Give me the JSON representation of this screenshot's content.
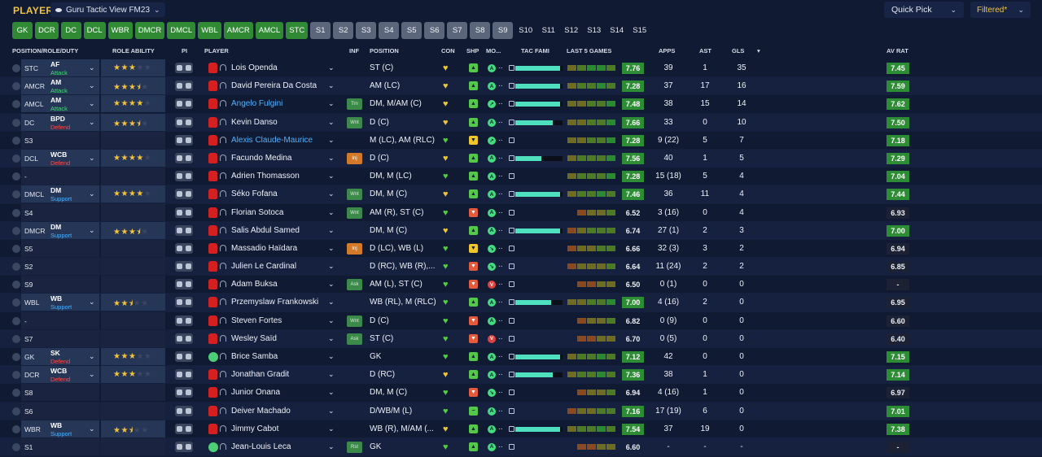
{
  "header": {
    "title": "PLAYERS",
    "view": "Guru Tactic View FM23",
    "quick_pick": "Quick Pick",
    "filter": "Filtered*"
  },
  "chips": [
    {
      "label": "GK",
      "style": "green"
    },
    {
      "label": "DCR",
      "style": "green"
    },
    {
      "label": "DC",
      "style": "green"
    },
    {
      "label": "DCL",
      "style": "green"
    },
    {
      "label": "WBR",
      "style": "green"
    },
    {
      "label": "DMCR",
      "style": "green"
    },
    {
      "label": "DMCL",
      "style": "green"
    },
    {
      "label": "WBL",
      "style": "green"
    },
    {
      "label": "AMCR",
      "style": "green"
    },
    {
      "label": "AMCL",
      "style": "green"
    },
    {
      "label": "STC",
      "style": "green"
    },
    {
      "label": "S1",
      "style": "grey"
    },
    {
      "label": "S2",
      "style": "grey"
    },
    {
      "label": "S3",
      "style": "grey"
    },
    {
      "label": "S4",
      "style": "grey"
    },
    {
      "label": "S5",
      "style": "grey"
    },
    {
      "label": "S6",
      "style": "grey"
    },
    {
      "label": "S7",
      "style": "grey"
    },
    {
      "label": "S8",
      "style": "grey"
    },
    {
      "label": "S9",
      "style": "grey"
    },
    {
      "label": "S10",
      "style": "dark"
    },
    {
      "label": "S11",
      "style": "dark"
    },
    {
      "label": "S12",
      "style": "dark"
    },
    {
      "label": "S13",
      "style": "dark"
    },
    {
      "label": "S14",
      "style": "dark"
    },
    {
      "label": "S15",
      "style": "dark"
    }
  ],
  "columns": {
    "position": "POSITION/ROLE/DUTY",
    "ability": "ROLE ABILITY",
    "pi": "PI",
    "player": "PLAYER",
    "inf": "INF",
    "pos": "POSITION",
    "con": "CON",
    "shp": "SHP",
    "mor": "MO...",
    "tac": "TAC FAMI",
    "last5": "LAST 5 GAMES",
    "apps": "APPS",
    "ast": "AST",
    "gls": "GLS",
    "sort_icon": "▾",
    "avrat": "AV RAT"
  },
  "players": [
    {
      "slot": "STC",
      "role": "AF",
      "duty": "Attack",
      "duty_class": "attack",
      "stars": 3,
      "name": "Lois Openda",
      "name_blue": false,
      "inf": "",
      "position": "ST (C)",
      "con": "yellow",
      "shp": "g",
      "shp_icon": "▲",
      "mor": "g",
      "mor_icon": "A",
      "tac": 0.95,
      "last5": [
        2,
        3,
        4,
        4,
        3
      ],
      "rating": "7.76",
      "rating_style": "green",
      "apps": "39",
      "ast": "1",
      "gls": "35",
      "avrat": "7.45",
      "avrat_style": "green"
    },
    {
      "slot": "AMCR",
      "role": "AM",
      "duty": "Attack",
      "duty_class": "attack",
      "stars": 3.5,
      "name": "David Pereira Da Costa",
      "name_blue": false,
      "inf": "",
      "position": "AM (LC)",
      "con": "yellow",
      "shp": "g",
      "shp_icon": "▲",
      "mor": "g",
      "mor_icon": "A",
      "tac": 0.95,
      "last5": [
        2,
        3,
        3,
        4,
        3
      ],
      "rating": "7.28",
      "rating_style": "green",
      "apps": "37",
      "ast": "17",
      "gls": "16",
      "avrat": "7.59",
      "avrat_style": "green"
    },
    {
      "slot": "AMCL",
      "role": "AM",
      "duty": "Attack",
      "duty_class": "attack",
      "stars": 4,
      "name": "Angelo Fulgini",
      "name_blue": true,
      "inf": "Trn",
      "inf_class": "trn",
      "position": "DM, M/AM (C)",
      "con": "yellow",
      "shp": "g",
      "shp_icon": "▲",
      "mor": "g",
      "mor_icon": "↗",
      "tac": 0.95,
      "last5": [
        2,
        2,
        3,
        3,
        4
      ],
      "rating": "7.48",
      "rating_style": "green",
      "apps": "38",
      "ast": "15",
      "gls": "14",
      "avrat": "7.62",
      "avrat_style": "green"
    },
    {
      "slot": "DC",
      "role": "BPD",
      "duty": "Defend",
      "duty_class": "defend",
      "stars": 3.5,
      "name": "Kevin Danso",
      "name_blue": false,
      "inf": "Wnt",
      "inf_class": "wnt",
      "position": "D (C)",
      "con": "yellow",
      "shp": "g",
      "shp_icon": "▲",
      "mor": "g",
      "mor_icon": "A",
      "tac": 0.8,
      "last5": [
        2,
        2,
        3,
        3,
        4
      ],
      "rating": "7.66",
      "rating_style": "green",
      "apps": "33",
      "ast": "0",
      "gls": "10",
      "avrat": "7.50",
      "avrat_style": "green"
    },
    {
      "slot": "S3",
      "role": "",
      "duty": "",
      "duty_class": "",
      "stars": 0,
      "name": "Alexis Claude-Maurice",
      "name_blue": true,
      "inf": "",
      "position": "M (LC), AM (RLC)",
      "con": "green",
      "shp": "y",
      "shp_icon": "▼",
      "mor": "g",
      "mor_icon": "↗",
      "tac": 0,
      "last5": [
        2,
        2,
        3,
        3,
        4
      ],
      "rating": "7.28",
      "rating_style": "green",
      "apps": "9 (22)",
      "ast": "5",
      "gls": "7",
      "avrat": "7.18",
      "avrat_style": "green"
    },
    {
      "slot": "DCL",
      "role": "WCB",
      "duty": "Defend",
      "duty_class": "defend",
      "stars": 4,
      "name": "Facundo Medina",
      "name_blue": false,
      "inf": "Inj",
      "inf_class": "inj",
      "position": "D (C)",
      "con": "yellow",
      "shp": "g",
      "shp_icon": "▲",
      "mor": "g",
      "mor_icon": "A",
      "tac": 0.55,
      "last5": [
        2,
        3,
        3,
        3,
        4
      ],
      "rating": "7.56",
      "rating_style": "green",
      "apps": "40",
      "ast": "1",
      "gls": "5",
      "avrat": "7.29",
      "avrat_style": "green"
    },
    {
      "slot": "-",
      "role": "",
      "duty": "",
      "duty_class": "",
      "stars": 0,
      "name": "Adrien Thomasson",
      "name_blue": false,
      "inf": "",
      "position": "DM, M (LC)",
      "con": "green",
      "shp": "g",
      "shp_icon": "▲",
      "mor": "g",
      "mor_icon": "A",
      "tac": 0,
      "last5": [
        2,
        3,
        3,
        3,
        4
      ],
      "rating": "7.28",
      "rating_style": "green",
      "apps": "15 (18)",
      "ast": "5",
      "gls": "4",
      "avrat": "7.04",
      "avrat_style": "green"
    },
    {
      "slot": "DMCL",
      "role": "DM",
      "duty": "Support",
      "duty_class": "support",
      "stars": 4,
      "name": "Séko Fofana",
      "name_blue": false,
      "inf": "Wnt",
      "inf_class": "wnt",
      "position": "DM, M (C)",
      "con": "yellow",
      "shp": "g",
      "shp_icon": "▲",
      "mor": "g",
      "mor_icon": "A",
      "tac": 0.95,
      "last5": [
        2,
        3,
        3,
        4,
        3
      ],
      "rating": "7.46",
      "rating_style": "green",
      "apps": "36",
      "ast": "11",
      "gls": "4",
      "avrat": "7.44",
      "avrat_style": "green"
    },
    {
      "slot": "S4",
      "role": "",
      "duty": "",
      "duty_class": "",
      "stars": 0,
      "name": "Florian Sotoca",
      "name_blue": false,
      "inf": "Wnt",
      "inf_class": "wnt",
      "position": "AM (R), ST (C)",
      "con": "green",
      "shp": "r",
      "shp_icon": "▼",
      "mor": "g",
      "mor_icon": "A",
      "tac": 0,
      "last5": [
        0,
        1,
        2,
        2,
        3
      ],
      "rating": "6.52",
      "rating_style": "plain",
      "apps": "3 (16)",
      "ast": "0",
      "gls": "4",
      "avrat": "6.93",
      "avrat_style": "dark"
    },
    {
      "slot": "DMCR",
      "role": "DM",
      "duty": "Support",
      "duty_class": "support",
      "stars": 3.5,
      "name": "Salis Abdul Samed",
      "name_blue": false,
      "inf": "",
      "position": "DM, M (C)",
      "con": "yellow",
      "shp": "g",
      "shp_icon": "▲",
      "mor": "g",
      "mor_icon": "A",
      "tac": 0.95,
      "last5": [
        1,
        2,
        3,
        3,
        3
      ],
      "rating": "6.74",
      "rating_style": "plain",
      "apps": "27 (1)",
      "ast": "2",
      "gls": "3",
      "avrat": "7.00",
      "avrat_style": "green"
    },
    {
      "slot": "S5",
      "role": "",
      "duty": "",
      "duty_class": "",
      "stars": 0,
      "name": "Massadio Haïdara",
      "name_blue": false,
      "inf": "Inj",
      "inf_class": "inj",
      "position": "D (LC), WB (L)",
      "con": "green",
      "shp": "y",
      "shp_icon": "▼",
      "mor": "g",
      "mor_icon": "↘",
      "tac": 0,
      "last5": [
        1,
        2,
        2,
        3,
        3
      ],
      "rating": "6.66",
      "rating_style": "plain",
      "apps": "32 (3)",
      "ast": "3",
      "gls": "2",
      "avrat": "6.94",
      "avrat_style": "dark"
    },
    {
      "slot": "S2",
      "role": "",
      "duty": "",
      "duty_class": "",
      "stars": 0,
      "name": "Julien Le Cardinal",
      "name_blue": false,
      "inf": "",
      "position": "D (RC), WB (R),...",
      "con": "green",
      "shp": "r",
      "shp_icon": "▼",
      "mor": "g",
      "mor_icon": "↘",
      "tac": 0,
      "last5": [
        1,
        2,
        2,
        2,
        3
      ],
      "rating": "6.64",
      "rating_style": "plain",
      "apps": "11 (24)",
      "ast": "2",
      "gls": "2",
      "avrat": "6.85",
      "avrat_style": "dark"
    },
    {
      "slot": "S9",
      "role": "",
      "duty": "",
      "duty_class": "",
      "stars": 0,
      "name": "Adam Buksa",
      "name_blue": false,
      "inf": "Ask",
      "inf_class": "ask",
      "position": "AM (L), ST (C)",
      "con": "green",
      "shp": "r",
      "shp_icon": "▼",
      "mor": "r",
      "mor_icon": "V",
      "tac": 0,
      "last5": [
        0,
        1,
        1,
        2,
        2
      ],
      "rating": "6.50",
      "rating_style": "plain",
      "apps": "0 (1)",
      "ast": "0",
      "gls": "0",
      "avrat": "-",
      "avrat_style": "dark"
    },
    {
      "slot": "WBL",
      "role": "WB",
      "duty": "Support",
      "duty_class": "support",
      "stars": 2.5,
      "name": "Przemyslaw Frankowski",
      "name_blue": false,
      "inf": "",
      "position": "WB (RL), M (RLC)",
      "con": "green",
      "shp": "g",
      "shp_icon": "▲",
      "mor": "g",
      "mor_icon": "A",
      "tac": 0.75,
      "last5": [
        2,
        2,
        3,
        3,
        4
      ],
      "rating": "7.00",
      "rating_style": "green",
      "apps": "4 (16)",
      "ast": "2",
      "gls": "0",
      "avrat": "6.95",
      "avrat_style": "dark"
    },
    {
      "slot": "-",
      "role": "",
      "duty": "",
      "duty_class": "",
      "stars": 0,
      "name": "Steven Fortes",
      "name_blue": false,
      "inf": "Wnt",
      "inf_class": "wnt",
      "position": "D (C)",
      "con": "green",
      "shp": "r",
      "shp_icon": "▼",
      "mor": "g",
      "mor_icon": "A",
      "tac": 0,
      "last5": [
        0,
        1,
        2,
        2,
        3
      ],
      "rating": "6.82",
      "rating_style": "plain",
      "apps": "0 (9)",
      "ast": "0",
      "gls": "0",
      "avrat": "6.60",
      "avrat_style": "dark"
    },
    {
      "slot": "S7",
      "role": "",
      "duty": "",
      "duty_class": "",
      "stars": 0,
      "name": "Wesley Saïd",
      "name_blue": false,
      "inf": "Ask",
      "inf_class": "ask",
      "position": "ST (C)",
      "con": "green",
      "shp": "r",
      "shp_icon": "▼",
      "mor": "r",
      "mor_icon": "V",
      "tac": 0,
      "last5": [
        0,
        1,
        1,
        2,
        2
      ],
      "rating": "6.70",
      "rating_style": "plain",
      "apps": "0 (5)",
      "ast": "0",
      "gls": "0",
      "avrat": "6.40",
      "avrat_style": "dark"
    },
    {
      "slot": "GK",
      "role": "SK",
      "duty": "Defend",
      "duty_class": "defend",
      "stars": 3,
      "name": "Brice Samba",
      "name_blue": false,
      "inf": "",
      "position": "GK",
      "con": "green",
      "shp": "g",
      "shp_icon": "▲",
      "mor": "g",
      "mor_icon": "A",
      "tac": 0.95,
      "last5": [
        2,
        3,
        3,
        4,
        3
      ],
      "rating": "7.12",
      "rating_style": "green",
      "apps": "42",
      "ast": "0",
      "gls": "0",
      "avrat": "7.15",
      "avrat_style": "green",
      "gk": true
    },
    {
      "slot": "DCR",
      "role": "WCB",
      "duty": "Defend",
      "duty_class": "defend",
      "stars": 3,
      "name": "Jonathan Gradit",
      "name_blue": false,
      "inf": "",
      "position": "D (RC)",
      "con": "yellow",
      "shp": "g",
      "shp_icon": "▲",
      "mor": "g",
      "mor_icon": "A",
      "tac": 0.8,
      "last5": [
        2,
        3,
        3,
        4,
        3
      ],
      "rating": "7.36",
      "rating_style": "green",
      "apps": "38",
      "ast": "1",
      "gls": "0",
      "avrat": "7.14",
      "avrat_style": "green"
    },
    {
      "slot": "S8",
      "role": "",
      "duty": "",
      "duty_class": "",
      "stars": 0,
      "name": "Junior Onana",
      "name_blue": false,
      "inf": "",
      "position": "DM, M (C)",
      "con": "green",
      "shp": "r",
      "shp_icon": "▼",
      "mor": "g",
      "mor_icon": "↘",
      "tac": 0,
      "last5": [
        0,
        1,
        2,
        2,
        3
      ],
      "rating": "6.94",
      "rating_style": "plain",
      "apps": "4 (16)",
      "ast": "1",
      "gls": "0",
      "avrat": "6.97",
      "avrat_style": "dark"
    },
    {
      "slot": "S6",
      "role": "",
      "duty": "",
      "duty_class": "",
      "stars": 0,
      "name": "Deiver Machado",
      "name_blue": false,
      "inf": "",
      "position": "D/WB/M (L)",
      "con": "green",
      "shp": "g",
      "shp_icon": "−",
      "mor": "g",
      "mor_icon": "A",
      "tac": 0,
      "last5": [
        1,
        2,
        2,
        3,
        3
      ],
      "rating": "7.16",
      "rating_style": "green",
      "apps": "17 (19)",
      "ast": "6",
      "gls": "0",
      "avrat": "7.01",
      "avrat_style": "green"
    },
    {
      "slot": "WBR",
      "role": "WB",
      "duty": "Support",
      "duty_class": "support",
      "stars": 2.5,
      "name": "Jimmy Cabot",
      "name_blue": false,
      "inf": "",
      "position": "WB (R), M/AM (...",
      "con": "yellow",
      "shp": "g",
      "shp_icon": "▲",
      "mor": "g",
      "mor_icon": "A",
      "tac": 0.95,
      "last5": [
        2,
        3,
        3,
        4,
        3
      ],
      "rating": "7.54",
      "rating_style": "green",
      "apps": "37",
      "ast": "19",
      "gls": "0",
      "avrat": "7.38",
      "avrat_style": "green"
    },
    {
      "slot": "S1",
      "role": "",
      "duty": "",
      "duty_class": "",
      "stars": 0,
      "name": "Jean-Louis Leca",
      "name_blue": false,
      "inf": "Rst",
      "inf_class": "rst",
      "position": "GK",
      "con": "green",
      "shp": "g",
      "shp_icon": "▲",
      "mor": "g",
      "mor_icon": "A",
      "tac": 0,
      "last5": [
        0,
        1,
        1,
        2,
        2
      ],
      "rating": "6.60",
      "rating_style": "plain",
      "apps": "-",
      "ast": "-",
      "gls": "-",
      "avrat": "-",
      "avrat_style": "dark",
      "gk": true
    }
  ]
}
